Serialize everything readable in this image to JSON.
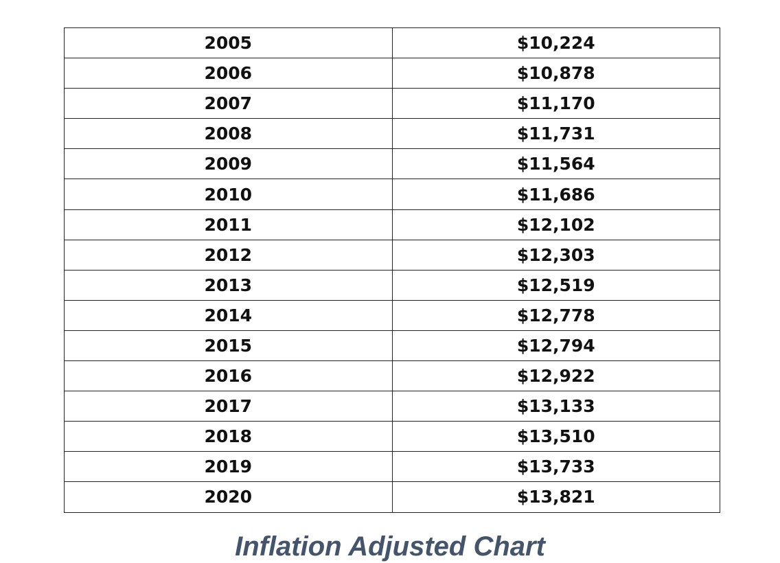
{
  "table": {
    "rows": [
      [
        "2005",
        "$10,224"
      ],
      [
        "2006",
        "$10,878"
      ],
      [
        "2007",
        "$11,170"
      ],
      [
        "2008",
        "$11,731"
      ],
      [
        "2009",
        "$11,564"
      ],
      [
        "2010",
        "$11,686"
      ],
      [
        "2011",
        "$12,102"
      ],
      [
        "2012",
        "$12,303"
      ],
      [
        "2013",
        "$12,519"
      ],
      [
        "2014",
        "$12,778"
      ],
      [
        "2015",
        "$12,794"
      ],
      [
        "2016",
        "$12,922"
      ],
      [
        "2017",
        "$13,133"
      ],
      [
        "2018",
        "$13,510"
      ],
      [
        "2019",
        "$13,733"
      ],
      [
        "2020",
        "$13,821"
      ]
    ]
  },
  "caption": "Inflation Adjusted Chart"
}
